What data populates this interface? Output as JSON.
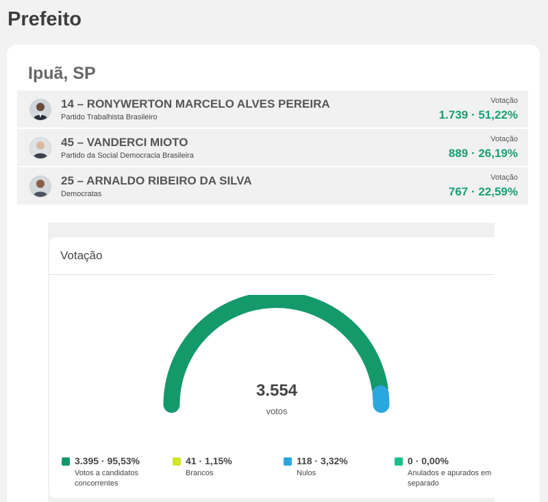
{
  "page": {
    "title": "Prefeito"
  },
  "city": "Ipuã, SP",
  "candidates": [
    {
      "name": "14 – RONYWERTON MARCELO ALVES PEREIRA",
      "party": "Partido Trabalhista Brasileiro",
      "vote_label": "Votação",
      "vote_value": "1.739 · 51,22%"
    },
    {
      "name": "45 – VANDERCI MIOTO",
      "party": "Partido da Social Democracia Brasileira",
      "vote_label": "Votação",
      "vote_value": "889 · 26,19%"
    },
    {
      "name": "25 – ARNALDO RIBEIRO DA SILVA",
      "party": "Democratas",
      "vote_label": "Votação",
      "vote_value": "767 · 22,59%"
    }
  ],
  "chart_data": {
    "type": "gauge",
    "title": "Votação",
    "total": "3.554",
    "total_unit": "votos",
    "segments": [
      {
        "value": 3395,
        "label_value": "3.395 · 95,53%",
        "percent": 95.53,
        "label": "Votos a candidatos concorrentes",
        "color": "#14996b"
      },
      {
        "value": 41,
        "label_value": "41 · 1,15%",
        "percent": 1.15,
        "label": "Brancos",
        "color": "#d4e52a"
      },
      {
        "value": 118,
        "label_value": "118 · 3,32%",
        "percent": 3.32,
        "label": "Nulos",
        "color": "#2ba6df"
      },
      {
        "value": 0,
        "label_value": "0 · 0,00%",
        "percent": 0.0,
        "label": "Anulados e apurados em separado",
        "color": "#17c08a"
      }
    ]
  },
  "icons": {
    "avatar": "person-avatar-icon"
  },
  "colors": {
    "accent": "#17a06e",
    "background": "#f2f2f2",
    "card": "#ffffff"
  }
}
